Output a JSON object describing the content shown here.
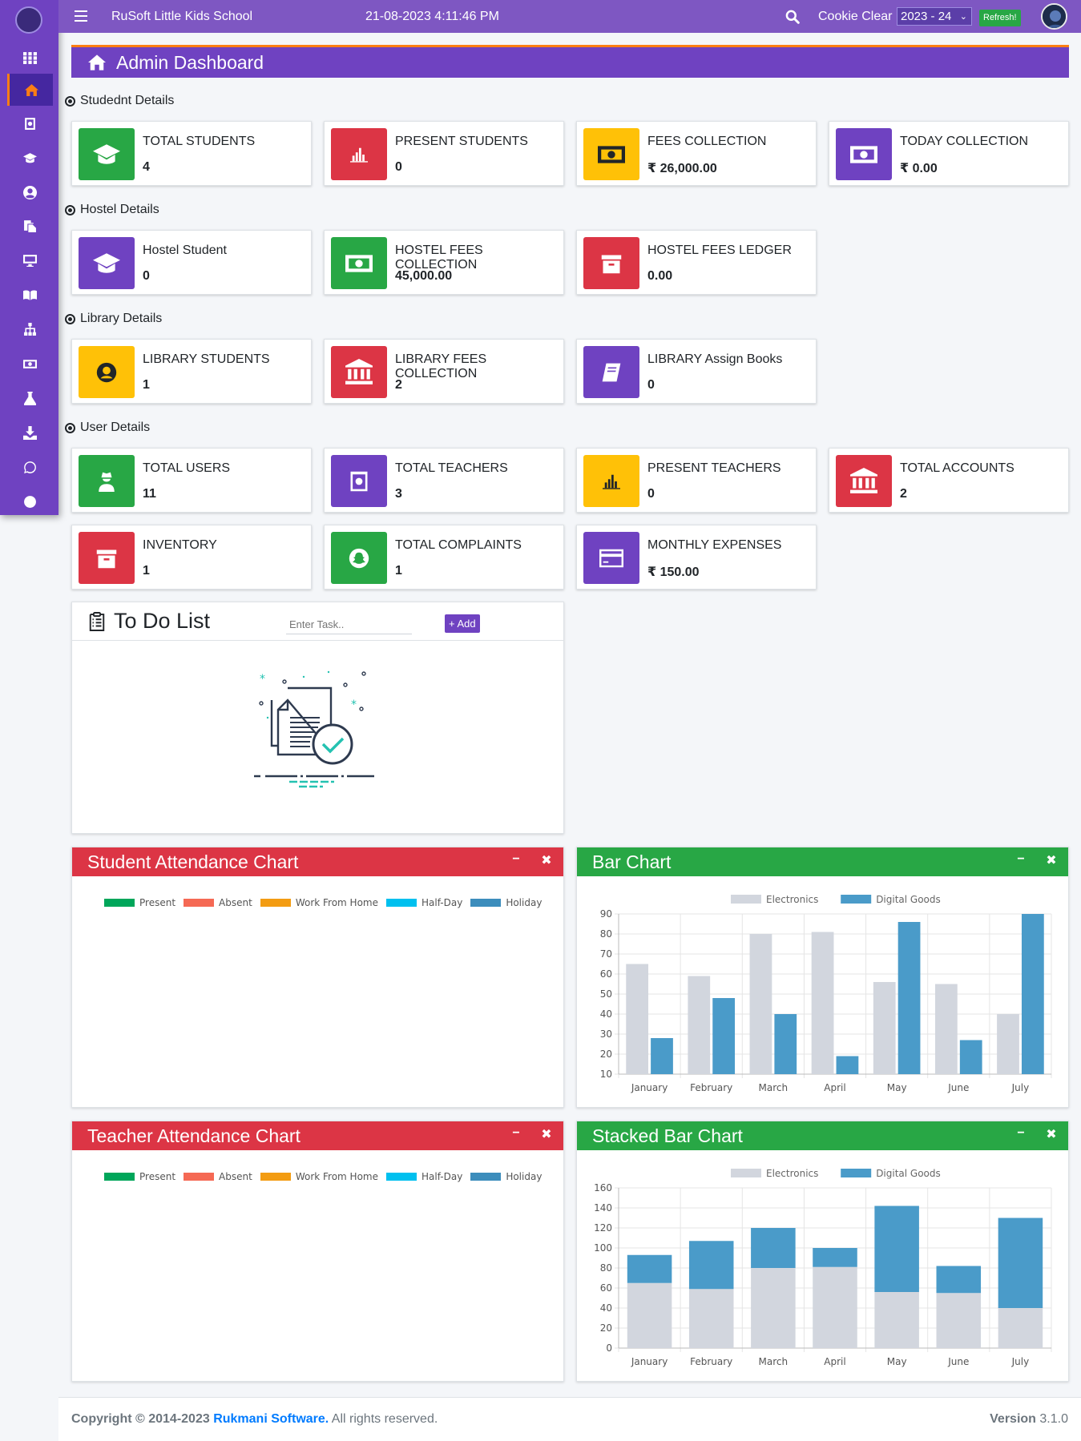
{
  "topbar": {
    "school_name": "RuSoft Little Kids School",
    "datetime": "21-08-2023 4:11:46 PM",
    "cookie_clear": "Cookie Clear",
    "session": "2023 - 24",
    "refresh": "Refresh!"
  },
  "sidebar": {
    "items": [
      "dashboard-grid-icon",
      "home-icon",
      "id-card-icon",
      "graduation-cap-icon",
      "user-circle-icon",
      "copy-icon",
      "desktop-icon",
      "book-open-icon",
      "sitemap-icon",
      "money-bill-icon",
      "flask-icon",
      "download-icon",
      "whatsapp-icon",
      "user-secret-icon"
    ]
  },
  "page": {
    "title": "Admin Dashboard"
  },
  "sections": {
    "student": "Studednt Details",
    "hostel": "Hostel Details",
    "library": "Library Details",
    "user": "User Details"
  },
  "cards": {
    "total_students": {
      "label": "TOTAL STUDENTS",
      "value": "4"
    },
    "present_students": {
      "label": "PRESENT STUDENTS",
      "value": "0"
    },
    "fees_collection": {
      "label": "FEES COLLECTION",
      "value": "₹ 26,000.00"
    },
    "today_collection": {
      "label": "TODAY COLLECTION",
      "value": "₹ 0.00"
    },
    "hostel_student": {
      "label": "Hostel Student",
      "value": "0"
    },
    "hostel_fees_collection": {
      "label": "HOSTEL FEES COLLECTION",
      "value": "45,000.00"
    },
    "hostel_fees_ledger": {
      "label": "HOSTEL FEES LEDGER",
      "value": "0.00"
    },
    "library_students": {
      "label": "LIBRARY STUDENTS",
      "value": "1"
    },
    "library_fees_collection": {
      "label": "LIBRARY FEES COLLECTION",
      "value": "2"
    },
    "library_assign_books": {
      "label": "LIBRARY Assign Books",
      "value": "0"
    },
    "total_users": {
      "label": "TOTAL USERS",
      "value": "11"
    },
    "total_teachers": {
      "label": "TOTAL TEACHERS",
      "value": "3"
    },
    "present_teachers": {
      "label": "PRESENT TEACHERS",
      "value": "0"
    },
    "total_accounts": {
      "label": "TOTAL ACCOUNTS",
      "value": "2"
    },
    "inventory": {
      "label": "INVENTORY",
      "value": "1"
    },
    "total_complaints": {
      "label": "TOTAL COMPLAINTS",
      "value": "1"
    },
    "monthly_expenses": {
      "label": "MONTHLY EXPENSES",
      "value": "₹ 150.00"
    }
  },
  "todo": {
    "title": "To Do List",
    "placeholder": "Enter Task..",
    "add_label": "+ Add"
  },
  "panels": {
    "student_attendance": "Student Attendance Chart",
    "teacher_attendance": "Teacher Attendance Chart",
    "bar_chart": "Bar Chart",
    "stacked_bar_chart": "Stacked Bar Chart",
    "minimize": "−",
    "close": "✖"
  },
  "attendance_legend": [
    {
      "name": "Present",
      "color": "#00a65a"
    },
    {
      "name": "Absent",
      "color": "#f56954"
    },
    {
      "name": "Work From Home",
      "color": "#f39c12"
    },
    {
      "name": "Half-Day",
      "color": "#00c0ef"
    },
    {
      "name": "Holiday",
      "color": "#3c8dbc"
    }
  ],
  "chart_data": [
    {
      "type": "bar",
      "title": "Bar Chart",
      "categories": [
        "January",
        "February",
        "March",
        "April",
        "May",
        "June",
        "July"
      ],
      "series": [
        {
          "name": "Electronics",
          "color": "#d2d6de",
          "values": [
            65,
            59,
            80,
            81,
            56,
            55,
            40
          ]
        },
        {
          "name": "Digital Goods",
          "color": "#4a9bc9",
          "values": [
            28,
            48,
            40,
            19,
            86,
            27,
            90
          ]
        }
      ],
      "yticks": [
        10,
        20,
        30,
        40,
        50,
        60,
        70,
        80,
        90
      ],
      "ylim": [
        10,
        90
      ],
      "legend": "top",
      "grid": true
    },
    {
      "type": "bar",
      "stacked": true,
      "title": "Stacked Bar Chart",
      "categories": [
        "January",
        "February",
        "March",
        "April",
        "May",
        "June",
        "July"
      ],
      "series": [
        {
          "name": "Electronics",
          "color": "#d2d6de",
          "values": [
            65,
            59,
            80,
            81,
            56,
            55,
            40
          ]
        },
        {
          "name": "Digital Goods",
          "color": "#4a9bc9",
          "values": [
            28,
            48,
            40,
            19,
            86,
            27,
            90
          ]
        }
      ],
      "yticks": [
        0,
        20,
        40,
        60,
        80,
        100,
        120,
        140,
        160
      ],
      "ylim": [
        0,
        160
      ],
      "legend": "top",
      "grid": true
    }
  ],
  "footer": {
    "copyright": "Copyright © 2014-2023",
    "brand": "Rukmani Software.",
    "rights": "All rights reserved.",
    "version_label": "Version",
    "version": "3.1.0"
  }
}
